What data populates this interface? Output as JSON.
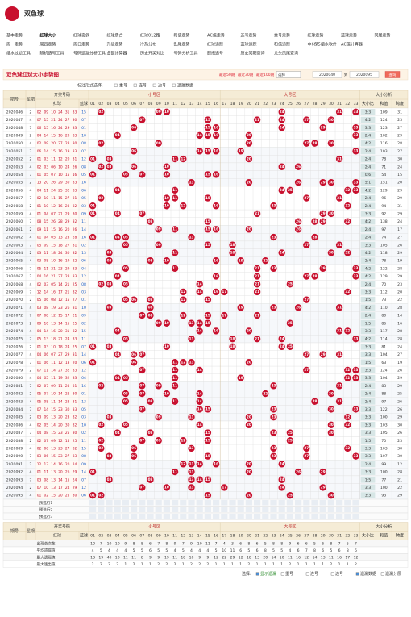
{
  "header": {
    "title": "双色球"
  },
  "nav": [
    [
      "基本走势",
      "红球大小",
      "红球奇偶",
      "红球质合",
      "红球012路",
      "和值走势",
      "AC值走势",
      "连号走势",
      "重号走势",
      "红球走势",
      "蓝球走势",
      "同尾走势"
    ],
    [
      "周一走势",
      "周四走势",
      "周日走势",
      "升级走势",
      "冷热分布",
      "乱尾走势",
      "红球追踪",
      "蓝球追踪",
      "和值追踪",
      "中6保5缩水软件",
      "AC值计算器"
    ],
    [
      "缩水过滤工具",
      "随机选号工具",
      "号码遗漏分析工具",
      "金额计算器",
      "历史开奖对比",
      "号码分析工具",
      "胆拖选号",
      "历史同期查询",
      "龙头凤尾查询"
    ]
  ],
  "toolbar": {
    "title": "双色球红球大小走势图",
    "recent": [
      "最近50期",
      "最近30期",
      "最近100期"
    ],
    "select": "选择",
    "from": "2020040",
    "to_label": "到",
    "to": "2020095",
    "button": "查询"
  },
  "options": {
    "label": "标注形式选择:",
    "items": [
      "重号",
      "连号",
      "边号",
      "遗漏数据"
    ]
  },
  "table": {
    "headers": {
      "issue": "期号",
      "week": "星期",
      "draw": "开奖号码",
      "red": "红球",
      "blue": "蓝球",
      "small_zone": "小号区",
      "big_zone": "大号区",
      "analysis": "大小分析",
      "ratio": "大小比",
      "sum": "和值",
      "span": "跨度"
    },
    "numbers": [
      "01",
      "02",
      "03",
      "04",
      "05",
      "06",
      "07",
      "08",
      "09",
      "10",
      "11",
      "12",
      "13",
      "14",
      "15",
      "16",
      "17",
      "18",
      "19",
      "20",
      "21",
      "22",
      "23",
      "24",
      "25",
      "26",
      "27",
      "28",
      "29",
      "30",
      "31",
      "32",
      "33"
    ],
    "rows": [
      [
        "2020046",
        "2",
        [
          "02",
          "09",
          "10",
          "24",
          "31",
          "33"
        ],
        "15",
        "3:3",
        109,
        31
      ],
      [
        "2020047",
        "4",
        [
          "07",
          "15",
          "21",
          "24",
          "27",
          "30"
        ],
        "07",
        "4:2",
        124,
        23
      ],
      [
        "2020048",
        "7",
        [
          "06",
          "15",
          "16",
          "24",
          "29",
          "33"
        ],
        "01",
        "3:3",
        123,
        27
      ],
      [
        "2020049",
        "2",
        [
          "04",
          "14",
          "15",
          "16",
          "20",
          "33"
        ],
        "10",
        "2:4",
        102,
        29
      ],
      [
        "2020050",
        "4",
        [
          "02",
          "09",
          "20",
          "27",
          "28",
          "30"
        ],
        "08",
        "4:2",
        116,
        28
      ],
      [
        "2020051",
        "7",
        [
          "06",
          "14",
          "15",
          "16",
          "19",
          "33"
        ],
        "07",
        "2:4",
        103,
        27
      ],
      [
        "2020052",
        "2",
        [
          "01",
          "03",
          "11",
          "12",
          "20",
          "31"
        ],
        "12",
        "2:4",
        78,
        30
      ],
      [
        "2020053",
        "4",
        [
          "02",
          "03",
          "06",
          "10",
          "24",
          "26"
        ],
        "08",
        "2:4",
        71,
        24
      ],
      [
        "2020054",
        "7",
        [
          "01",
          "05",
          "07",
          "10",
          "15",
          "16"
        ],
        "05",
        "0:6",
        54,
        15
      ],
      [
        "2020055",
        "2",
        [
          "13",
          "20",
          "26",
          "29",
          "30",
          "33"
        ],
        "16",
        "5:1",
        151,
        20
      ],
      [
        "2020056",
        "4",
        [
          "04",
          "11",
          "24",
          "25",
          "32",
          "33"
        ],
        "06",
        "4:2",
        129,
        29
      ],
      [
        "2020057",
        "7",
        [
          "02",
          "10",
          "11",
          "15",
          "27",
          "31"
        ],
        "05",
        "2:4",
        96,
        29
      ],
      [
        "2020058",
        "2",
        [
          "01",
          "10",
          "12",
          "16",
          "23",
          "32"
        ],
        "03",
        "2:4",
        94,
        31
      ],
      [
        "2020059",
        "4",
        [
          "01",
          "04",
          "07",
          "21",
          "29",
          "30"
        ],
        "09",
        "3:3",
        92,
        29
      ],
      [
        "2020060",
        "7",
        [
          "08",
          "15",
          "26",
          "28",
          "29",
          "32"
        ],
        "11",
        "4:2",
        138,
        24
      ],
      [
        "2020061",
        "2",
        [
          "09",
          "11",
          "15",
          "16",
          "20",
          "26"
        ],
        "14",
        "2:4",
        97,
        17
      ],
      [
        "2020062",
        "4",
        [
          "01",
          "04",
          "05",
          "13",
          "23",
          "28"
        ],
        "16",
        "2:4",
        74,
        27
      ],
      [
        "2020063",
        "7",
        [
          "05",
          "09",
          "15",
          "18",
          "27",
          "31"
        ],
        "02",
        "3:3",
        105,
        26
      ],
      [
        "2020064",
        "2",
        [
          "03",
          "11",
          "18",
          "24",
          "30",
          "32"
        ],
        "13",
        "4:2",
        118,
        29
      ],
      [
        "2020065",
        "4",
        [
          "03",
          "08",
          "10",
          "16",
          "19",
          "22"
        ],
        "06",
        "2:4",
        78,
        19
      ],
      [
        "2020066",
        "7",
        [
          "05",
          "11",
          "21",
          "23",
          "29",
          "33"
        ],
        "04",
        "4:2",
        122,
        28
      ],
      [
        "2020067",
        "2",
        [
          "04",
          "16",
          "21",
          "27",
          "28",
          "33"
        ],
        "12",
        "4:2",
        129,
        29
      ],
      [
        "2020068",
        "4",
        [
          "02",
          "03",
          "05",
          "14",
          "21",
          "25"
        ],
        "08",
        "2:4",
        70,
        23
      ],
      [
        "2020069",
        "7",
        [
          "12",
          "14",
          "16",
          "17",
          "21",
          "32"
        ],
        "03",
        "3:3",
        112,
        20
      ],
      [
        "2020070",
        "2",
        [
          "05",
          "06",
          "08",
          "12",
          "15",
          "27"
        ],
        "01",
        "1:5",
        73,
        22
      ],
      [
        "2020071",
        "4",
        [
          "03",
          "08",
          "19",
          "23",
          "26",
          "31"
        ],
        "10",
        "4:2",
        110,
        28
      ],
      [
        "2020072",
        "7",
        [
          "07",
          "08",
          "12",
          "15",
          "17",
          "21"
        ],
        "09",
        "2:4",
        80,
        14
      ],
      [
        "2020073",
        "2",
        [
          "09",
          "10",
          "13",
          "14",
          "15",
          "25"
        ],
        "02",
        "1:5",
        86,
        16
      ],
      [
        "2020074",
        "4",
        [
          "04",
          "14",
          "16",
          "20",
          "31",
          "32"
        ],
        "15",
        "3:3",
        117,
        28
      ],
      [
        "2020075",
        "7",
        [
          "05",
          "13",
          "18",
          "21",
          "24",
          "33"
        ],
        "11",
        "4:2",
        114,
        28
      ],
      [
        "2020076",
        "2",
        [
          "01",
          "03",
          "10",
          "18",
          "24",
          "25"
        ],
        "07",
        "3:3",
        81,
        24
      ],
      [
        "2020077",
        "4",
        [
          "04",
          "06",
          "07",
          "27",
          "29",
          "31"
        ],
        "14",
        "3:3",
        104,
        27
      ],
      [
        "2020078",
        "7",
        [
          "01",
          "06",
          "11",
          "12",
          "13",
          "20"
        ],
        "06",
        "1:5",
        63,
        19
      ],
      [
        "2020079",
        "2",
        [
          "07",
          "11",
          "14",
          "27",
          "32",
          "33"
        ],
        "12",
        "3:3",
        124,
        26
      ],
      [
        "2020080",
        "4",
        [
          "04",
          "05",
          "11",
          "19",
          "32",
          "33"
        ],
        "04",
        "3:3",
        104,
        29
      ],
      [
        "2020081",
        "7",
        [
          "02",
          "07",
          "09",
          "11",
          "23",
          "31"
        ],
        "16",
        "2:4",
        83,
        29
      ],
      [
        "2020082",
        "2",
        [
          "05",
          "07",
          "10",
          "14",
          "22",
          "30"
        ],
        "01",
        "2:4",
        88,
        25
      ],
      [
        "2020083",
        "4",
        [
          "05",
          "08",
          "11",
          "14",
          "28",
          "31"
        ],
        "13",
        "2:4",
        97,
        26
      ],
      [
        "2020084",
        "7",
        [
          "07",
          "14",
          "15",
          "23",
          "30",
          "33"
        ],
        "05",
        "3:3",
        122,
        26
      ],
      [
        "2020085",
        "2",
        [
          "03",
          "09",
          "13",
          "20",
          "23",
          "32"
        ],
        "03",
        "3:3",
        100,
        29
      ],
      [
        "2020086",
        "4",
        [
          "02",
          "05",
          "14",
          "20",
          "30",
          "32"
        ],
        "10",
        "3:3",
        103,
        30
      ],
      [
        "2020087",
        "7",
        [
          "04",
          "08",
          "15",
          "23",
          "25",
          "30"
        ],
        "02",
        "3:3",
        105,
        26
      ],
      [
        "2020088",
        "2",
        [
          "02",
          "07",
          "09",
          "12",
          "15",
          "25"
        ],
        "11",
        "1:5",
        70,
        23
      ],
      [
        "2020089",
        "4",
        [
          "02",
          "06",
          "13",
          "23",
          "27",
          "32"
        ],
        "15",
        "3:3",
        103,
        30
      ],
      [
        "2020090",
        "7",
        [
          "03",
          "06",
          "15",
          "23",
          "27",
          "33"
        ],
        "08",
        "3:3",
        107,
        30
      ],
      [
        "2020091",
        "2",
        [
          "12",
          "13",
          "14",
          "16",
          "20",
          "24"
        ],
        "09",
        "2:4",
        99,
        12
      ],
      [
        "2020092",
        "4",
        [
          "01",
          "11",
          "13",
          "20",
          "26",
          "29"
        ],
        "14",
        "3:3",
        100,
        28
      ],
      [
        "2020093",
        "7",
        [
          "03",
          "08",
          "13",
          "14",
          "15",
          "24"
        ],
        "07",
        "1:5",
        77,
        21
      ],
      [
        "2020094",
        "2",
        [
          "07",
          "10",
          "13",
          "17",
          "24",
          "29"
        ],
        "12",
        "3:3",
        100,
        22
      ],
      [
        "2020095",
        "4",
        [
          "01",
          "02",
          "15",
          "20",
          "25",
          "30"
        ],
        "06",
        "3:3",
        93,
        29
      ]
    ],
    "preselect": [
      "预选行1",
      "预选行2",
      "预选行3"
    ],
    "stats": [
      {
        "label": "出现总次数",
        "values": [
          10,
          7,
          10,
          10,
          9,
          8,
          8,
          6,
          7,
          8,
          9,
          7,
          9,
          10,
          11,
          7,
          4,
          3,
          6,
          8,
          6,
          5,
          8,
          8,
          9,
          6,
          6,
          5,
          6,
          8,
          7,
          5,
          7
        ]
      },
      {
        "label": "平均遗漏值",
        "values": [
          4,
          5,
          4,
          4,
          4,
          5,
          5,
          6,
          5,
          5,
          4,
          5,
          4,
          4,
          4,
          5,
          10,
          11,
          6,
          5,
          6,
          8,
          5,
          5,
          4,
          6,
          7,
          8,
          6,
          5,
          6,
          8,
          6
        ]
      },
      {
        "label": "最大遗漏值",
        "values": [
          13,
          19,
          40,
          10,
          11,
          11,
          8,
          9,
          9,
          19,
          11,
          18,
          10,
          9,
          9,
          12,
          22,
          29,
          12,
          18,
          13,
          20,
          14,
          10,
          11,
          16,
          12,
          14,
          13,
          11,
          16,
          17,
          12
        ]
      },
      {
        "label": "最大连出值",
        "values": [
          2,
          2,
          2,
          2,
          1,
          2,
          1,
          1,
          2,
          2,
          2,
          1,
          2,
          2,
          2,
          1,
          1,
          1,
          1,
          2,
          1,
          1,
          1,
          1,
          2,
          1,
          1,
          1,
          1,
          2,
          1,
          1,
          2
        ]
      }
    ]
  },
  "footer": {
    "label": "选择:",
    "items": [
      "显示遗漏",
      "重号",
      "连号",
      "边号",
      "遗漏数据",
      "遗漏分层"
    ]
  }
}
